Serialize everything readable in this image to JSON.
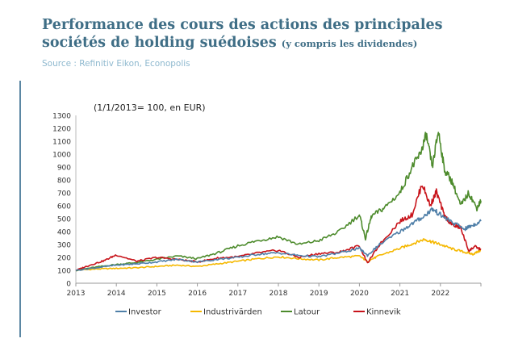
{
  "header": {
    "title_main": "Performance des cours des actions des principales sociétés de holding suédoises",
    "title_suffix": "(y compris les dividendes)",
    "source": "Source : Refinitiv Eikon, Econopolis"
  },
  "colors": {
    "title": "#3f6e86",
    "source": "#8fb9cf",
    "accent_bar": "#5b87a3",
    "Investor": "#4f7fa8",
    "Industrivärden": "#f5b800",
    "Latour": "#4d8b2c",
    "Kinnevik": "#c8131a"
  },
  "chart_data": {
    "type": "line",
    "annotation": "(1/1/2013= 100, en EUR)",
    "ylim": [
      0,
      1300
    ],
    "yticks": [
      0,
      100,
      200,
      300,
      400,
      500,
      600,
      700,
      800,
      900,
      1000,
      1100,
      1200,
      1300
    ],
    "xlim": [
      2013,
      2023
    ],
    "xticks": [
      "2013",
      "2014",
      "2015",
      "2016",
      "2017",
      "2018",
      "2019",
      "2020",
      "2021",
      "2022"
    ],
    "grid": false,
    "legend_position": "bottom",
    "series": [
      {
        "name": "Investor",
        "x": [
          2013,
          2013.5,
          2014,
          2014.5,
          2015,
          2015.5,
          2016,
          2016.5,
          2017,
          2017.5,
          2018,
          2018.5,
          2019,
          2019.5,
          2020,
          2020.2,
          2020.5,
          2021,
          2021.3,
          2021.6,
          2021.8,
          2022,
          2022.3,
          2022.6,
          2022.8,
          2023
        ],
        "values": [
          100,
          120,
          140,
          150,
          165,
          185,
          165,
          185,
          200,
          225,
          235,
          215,
          205,
          235,
          270,
          215,
          300,
          400,
          460,
          520,
          575,
          530,
          470,
          420,
          450,
          480
        ]
      },
      {
        "name": "Industrivärden",
        "x": [
          2013,
          2013.5,
          2014,
          2014.5,
          2015,
          2015.5,
          2016,
          2016.5,
          2017,
          2017.5,
          2018,
          2018.5,
          2019,
          2019.5,
          2020,
          2020.2,
          2020.5,
          2021,
          2021.3,
          2021.6,
          2021.8,
          2022,
          2022.3,
          2022.6,
          2022.8,
          2023
        ],
        "values": [
          100,
          110,
          115,
          120,
          130,
          140,
          130,
          150,
          170,
          190,
          205,
          190,
          180,
          200,
          210,
          170,
          215,
          270,
          305,
          340,
          320,
          300,
          265,
          240,
          225,
          255
        ]
      },
      {
        "name": "Latour",
        "x": [
          2013,
          2013.5,
          2014,
          2014.5,
          2015,
          2015.5,
          2016,
          2016.5,
          2017,
          2017.5,
          2018,
          2018.5,
          2019,
          2019.5,
          2020,
          2020.15,
          2020.3,
          2020.6,
          2021,
          2021.3,
          2021.5,
          2021.65,
          2021.8,
          2021.95,
          2022.1,
          2022.3,
          2022.5,
          2022.7,
          2022.9,
          2023
        ],
        "values": [
          100,
          125,
          145,
          160,
          185,
          210,
          190,
          235,
          290,
          330,
          360,
          300,
          330,
          400,
          530,
          345,
          520,
          580,
          700,
          900,
          1000,
          1150,
          900,
          1180,
          880,
          780,
          600,
          700,
          580,
          640
        ]
      },
      {
        "name": "Kinnevik",
        "x": [
          2013,
          2013.3,
          2013.7,
          2014,
          2014.5,
          2015,
          2015.5,
          2016,
          2016.5,
          2017,
          2017.5,
          2018,
          2018.5,
          2019,
          2019.5,
          2020,
          2020.2,
          2020.5,
          2021,
          2021.3,
          2021.55,
          2021.75,
          2021.9,
          2022.1,
          2022.3,
          2022.5,
          2022.7,
          2022.85,
          2023
        ],
        "values": [
          100,
          135,
          175,
          220,
          170,
          200,
          185,
          165,
          195,
          205,
          235,
          255,
          200,
          230,
          240,
          290,
          155,
          300,
          480,
          530,
          770,
          600,
          710,
          520,
          450,
          430,
          250,
          285,
          260
        ]
      }
    ]
  }
}
